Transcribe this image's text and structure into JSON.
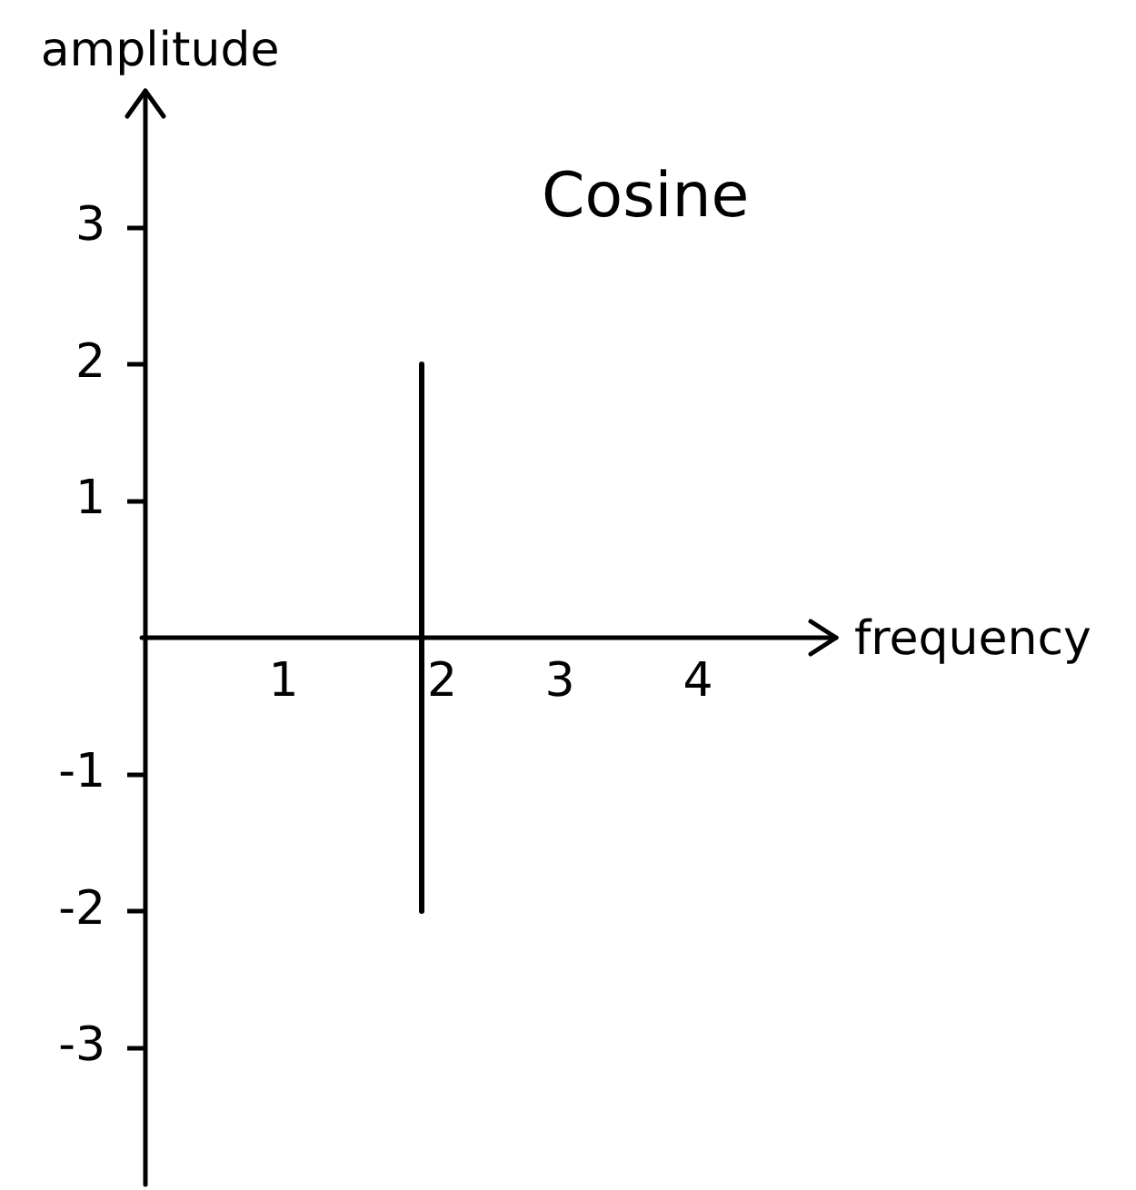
{
  "chart_data": {
    "type": "line",
    "title": "Cosine",
    "xlabel": "frequency",
    "ylabel": "amplitude",
    "x": [
      2,
      2
    ],
    "values": [
      2,
      -2
    ],
    "color": "#000000",
    "xlim": [
      0,
      5
    ],
    "ylim": [
      -4,
      4
    ],
    "xticks": [
      1,
      2,
      3,
      4
    ],
    "yticks": [
      -3,
      -2,
      -1,
      1,
      2,
      3
    ],
    "marker": "none",
    "line_style": "solid"
  }
}
